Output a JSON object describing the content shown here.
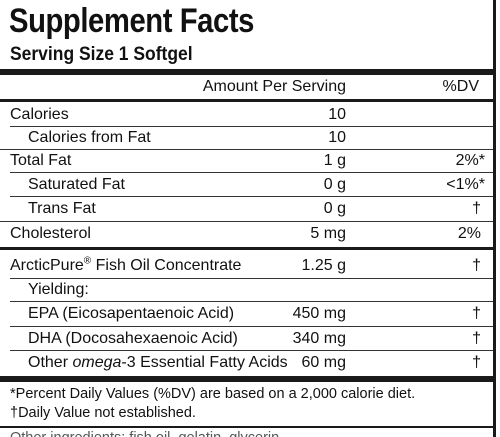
{
  "title": "Supplement Facts",
  "serving_size": "Serving Size 1 Softgel",
  "header": {
    "amount_per_serving": "Amount Per Serving",
    "dv": "%DV"
  },
  "rows": [
    {
      "label": "Calories",
      "amount": "10",
      "dv": ""
    },
    {
      "label": "Calories from Fat",
      "amount": "10",
      "dv": ""
    },
    {
      "label": "Total Fat",
      "amount": "1 g",
      "dv": "2%*"
    },
    {
      "label": "Saturated Fat",
      "amount": "0 g",
      "dv": "<1%*"
    },
    {
      "label": "Trans Fat",
      "amount": "0 g",
      "dv": "†"
    },
    {
      "label": "Cholesterol",
      "amount": "5 mg",
      "dv": "2%"
    },
    {
      "label_prefix": "ArcticPure",
      "label_mark": "®",
      "label_suffix": " Fish Oil Concentrate",
      "amount": "1.25 g",
      "dv": "†"
    },
    {
      "label": "Yielding:",
      "amount": "",
      "dv": ""
    },
    {
      "label": "EPA (Eicosapentaenoic Acid)",
      "amount": "450 mg",
      "dv": "†"
    },
    {
      "label": "DHA (Docosahexaenoic Acid)",
      "amount": "340 mg",
      "dv": "†"
    },
    {
      "label_prefix": "Other ",
      "label_italic": "omega",
      "label_suffix": "-3 Essential Fatty Acids",
      "amount": "60 mg",
      "dv": "†"
    }
  ],
  "footnotes": [
    "*Percent Daily Values (%DV) are based on a 2,000 calorie diet.",
    "†Daily Value not established."
  ],
  "cut_text": "Other ingredients: fish oil, gelatin, glycerin"
}
